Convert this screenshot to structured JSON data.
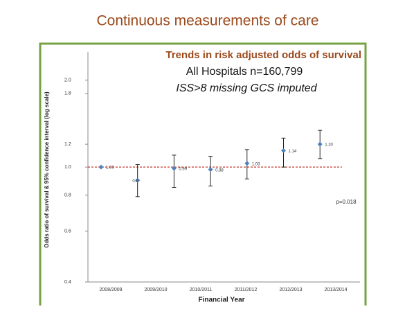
{
  "slide_title": "Continuous measurements of care",
  "chart_data": {
    "type": "errorbar",
    "title": "Trends in risk adjusted odds of survival",
    "subtitle": "All Hospitals  n=160,799",
    "subtitle2": "ISS>8   missing GCS imputed",
    "y_label": "Odds ratio of survival & 95% confidence interval (log scale)",
    "x_label": "Financial Year",
    "annotation": "p=0.018",
    "categories": [
      "2008/2009",
      "2009/2010",
      "2010/2011",
      "2011/2012",
      "2012/2013",
      "2013/2014",
      null
    ],
    "values": [
      1.0,
      0.9,
      0.99,
      0.98,
      1.03,
      1.14,
      1.2
    ],
    "value_labels": [
      "1.00",
      "0.9",
      "0.99",
      "0.98",
      "1.03",
      "1.14",
      "1.20"
    ],
    "lower": [
      null,
      0.79,
      0.85,
      0.86,
      0.91,
      1.0,
      1.07
    ],
    "upper": [
      null,
      1.02,
      1.1,
      1.09,
      1.15,
      1.26,
      1.34
    ],
    "reference_line": 1.0,
    "color": "#4f81bd",
    "reference_color": "#c0392b",
    "log_scale": true,
    "ylim": [
      0.4,
      2.5
    ],
    "yticks": [
      0.4,
      0.6,
      0.8,
      {
        "value": 1.0,
        "label": "1.0"
      },
      1.2,
      1.8,
      {
        "value": 2.0,
        "label": "2.0"
      }
    ]
  }
}
